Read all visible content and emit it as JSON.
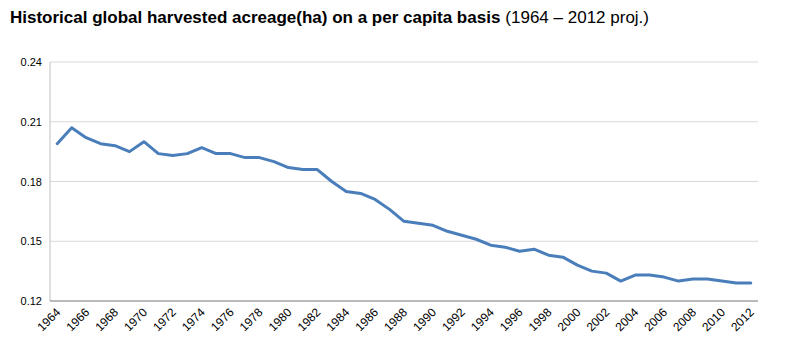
{
  "chart_data": {
    "type": "line",
    "title": "Historical global harvested acreage(ha) on a per capita basis",
    "subtitle": "(1964 – 2012 proj.)",
    "categories": [
      "1964",
      null,
      "1966",
      null,
      "1968",
      null,
      "1970",
      null,
      "1972",
      null,
      "1974",
      null,
      "1976",
      null,
      "1978",
      null,
      "1980",
      null,
      "1982",
      null,
      "1984",
      null,
      "1986",
      null,
      "1988",
      null,
      "1990",
      null,
      "1992",
      null,
      "1994",
      null,
      "1996",
      null,
      "1998",
      null,
      "2000",
      null,
      "2002",
      null,
      "2004",
      null,
      "2006",
      null,
      "2008",
      null,
      "2010",
      null,
      "2012"
    ],
    "values": [
      0.199,
      0.207,
      0.202,
      0.199,
      0.198,
      0.195,
      0.2,
      0.194,
      0.193,
      0.194,
      0.197,
      0.194,
      0.194,
      0.192,
      0.192,
      0.19,
      0.187,
      0.186,
      0.186,
      0.18,
      0.175,
      0.174,
      0.171,
      0.166,
      0.16,
      0.159,
      0.158,
      0.155,
      0.153,
      0.151,
      0.148,
      0.147,
      0.145,
      0.146,
      0.143,
      0.142,
      0.138,
      0.135,
      0.134,
      0.13,
      0.133,
      0.133,
      0.132,
      0.13,
      0.131,
      0.131,
      0.13,
      0.129,
      0.129
    ],
    "color": "#4a7ebb",
    "ylim": [
      0.12,
      0.24
    ],
    "yticks": [
      0.12,
      0.15,
      0.18,
      0.21,
      0.24
    ],
    "grid": true
  }
}
